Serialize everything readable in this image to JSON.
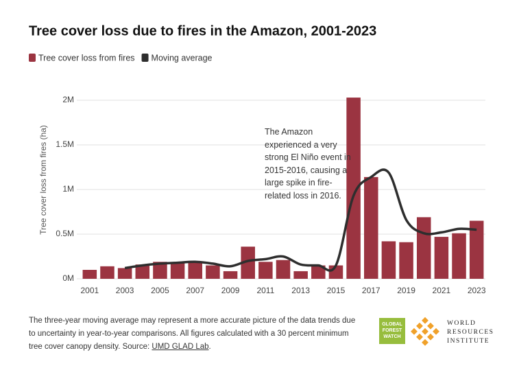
{
  "chart_data": {
    "type": "bar",
    "title": "Tree cover loss due to fires in the Amazon, 2001-2023",
    "y_label": "Tree cover loss from fires (ha)",
    "categories": [
      "2001",
      null,
      "2003",
      null,
      "2005",
      null,
      "2007",
      null,
      "2009",
      null,
      "2011",
      null,
      "2013",
      null,
      "2015",
      null,
      "2017",
      null,
      "2019",
      null,
      "2021",
      null,
      "2023"
    ],
    "series": [
      {
        "name": "Tree cover loss from fires",
        "type": "bar",
        "color": "#9b3441",
        "values": [
          100000,
          140000,
          120000,
          160000,
          190000,
          180000,
          180000,
          150000,
          85000,
          360000,
          190000,
          210000,
          85000,
          150000,
          150000,
          2030000,
          1140000,
          420000,
          410000,
          690000,
          470000,
          510000,
          650000
        ]
      },
      {
        "name": "Moving average",
        "type": "line",
        "color": "#2e2e2e",
        "values": [
          null,
          null,
          120000,
          150000,
          170000,
          180000,
          190000,
          170000,
          140000,
          200000,
          220000,
          250000,
          160000,
          150000,
          150000,
          930000,
          1140000,
          1190000,
          660000,
          510000,
          520000,
          560000,
          550000
        ]
      }
    ],
    "ylim": [
      0,
      2000000
    ],
    "yticks": [
      {
        "value": 0,
        "label": "0M"
      },
      {
        "value": 500000,
        "label": "0.5M"
      },
      {
        "value": 1000000,
        "label": "1M"
      },
      {
        "value": 1500000,
        "label": "1.5M"
      },
      {
        "value": 2000000,
        "label": "2M"
      }
    ],
    "grid": true,
    "legend": "top-left",
    "annotation": "The Amazon experienced a very strong El Niño event in 2015-2016, causing a large spike in fire-related loss in 2016."
  },
  "footnote": {
    "text": "The three-year moving average may represent a more accurate picture of the data trends due to uncertainty in year-to-year comparisons. All figures calculated with a 30 percent minimum tree cover canopy density. Source: ",
    "source": "UMD GLAD Lab",
    "suffix": "."
  },
  "logos": {
    "gfw": [
      "GLOBAL",
      "FOREST",
      "WATCH"
    ],
    "wri": [
      "WORLD",
      "RESOURCES",
      "INSTITUTE"
    ]
  }
}
